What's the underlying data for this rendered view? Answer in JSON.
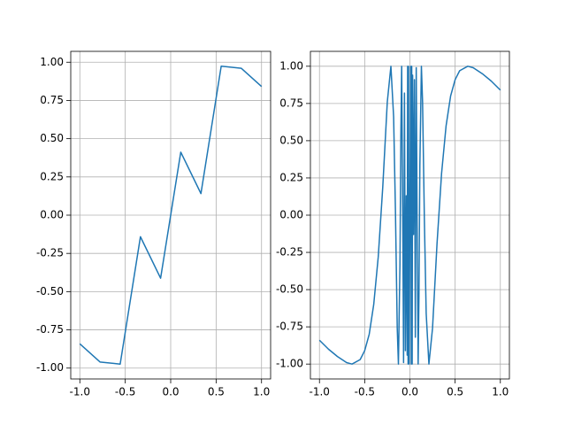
{
  "chart_data": [
    {
      "type": "line",
      "color": "#1f77b4",
      "grid": true,
      "x": [
        -1,
        -0.778,
        -0.556,
        -0.333,
        -0.111,
        0.111,
        0.333,
        0.556,
        0.778,
        1
      ],
      "values": [
        -0.841,
        -0.96,
        -0.974,
        -0.141,
        -0.412,
        0.412,
        0.141,
        0.974,
        0.96,
        0.841
      ],
      "xlim": [
        -1.1,
        1.1
      ],
      "ylim": [
        -1.071,
        1.071
      ],
      "xticks": [
        {
          "value": -1,
          "label": "-1.0"
        },
        {
          "value": -0.5,
          "label": "-0.5"
        },
        {
          "value": 0,
          "label": "0.0"
        },
        {
          "value": 0.5,
          "label": "0.5"
        },
        {
          "value": 1,
          "label": "1.0"
        }
      ],
      "yticks": [
        {
          "value": -1,
          "label": "-1.00"
        },
        {
          "value": -0.75,
          "label": "-0.75"
        },
        {
          "value": -0.5,
          "label": "-0.50"
        },
        {
          "value": -0.25,
          "label": "-0.25"
        },
        {
          "value": 0,
          "label": "0.00"
        },
        {
          "value": 0.25,
          "label": "0.25"
        },
        {
          "value": 0.5,
          "label": "0.50"
        },
        {
          "value": 0.75,
          "label": "0.75"
        },
        {
          "value": 1,
          "label": "1.00"
        }
      ]
    },
    {
      "type": "line",
      "color": "#1f77b4",
      "grid": true,
      "x": [
        -1,
        -0.9,
        -0.8,
        -0.7,
        -0.64,
        -0.55,
        -0.5,
        -0.45,
        -0.4,
        -0.35,
        -0.3,
        -0.25,
        -0.21,
        -0.18,
        -0.16,
        -0.14,
        -0.127,
        -0.11,
        -0.1,
        -0.091,
        -0.08,
        -0.07,
        -0.06,
        -0.05,
        -0.04,
        -0.03,
        -0.025,
        -0.02,
        -0.015,
        -0.01,
        0.01,
        0.015,
        0.02,
        0.025,
        0.03,
        0.04,
        0.05,
        0.06,
        0.07,
        0.08,
        0.091,
        0.1,
        0.11,
        0.127,
        0.14,
        0.16,
        0.18,
        0.21,
        0.25,
        0.3,
        0.35,
        0.4,
        0.45,
        0.5,
        0.55,
        0.64,
        0.7,
        0.8,
        0.9,
        1
      ],
      "values": [
        -0.84,
        -0.9,
        -0.95,
        -0.99,
        -1,
        -0.97,
        -0.91,
        -0.8,
        -0.6,
        -0.28,
        0.19,
        0.76,
        1,
        0.66,
        0.03,
        -0.76,
        -1,
        -0.33,
        0.54,
        1,
        0.07,
        -0.99,
        0.82,
        -0.91,
        0.13,
        -0.94,
        1,
        -1,
        1,
        -1,
        1,
        -1,
        1,
        -1,
        0.94,
        -0.13,
        0.91,
        -0.82,
        0.99,
        -0.07,
        -1,
        -0.54,
        0.33,
        1,
        0.76,
        -0.03,
        -0.66,
        -1,
        -0.76,
        -0.19,
        0.28,
        0.6,
        0.8,
        0.91,
        0.97,
        1,
        0.99,
        0.95,
        0.9,
        0.84
      ],
      "xlim": [
        -1.1,
        1.1
      ],
      "ylim": [
        -1.1,
        1.1
      ],
      "xticks": [
        {
          "value": -1,
          "label": "-1.0"
        },
        {
          "value": -0.5,
          "label": "-0.5"
        },
        {
          "value": 0,
          "label": "0.0"
        },
        {
          "value": 0.5,
          "label": "0.5"
        },
        {
          "value": 1,
          "label": "1.0"
        }
      ],
      "yticks": [
        {
          "value": -1,
          "label": "-1.00"
        },
        {
          "value": -0.75,
          "label": "-0.75"
        },
        {
          "value": -0.5,
          "label": "-0.50"
        },
        {
          "value": -0.25,
          "label": "-0.25"
        },
        {
          "value": 0,
          "label": "0.00"
        },
        {
          "value": 0.25,
          "label": "0.25"
        },
        {
          "value": 0.5,
          "label": "0.50"
        },
        {
          "value": 0.75,
          "label": "0.75"
        },
        {
          "value": 1,
          "label": "1.00"
        }
      ]
    }
  ]
}
